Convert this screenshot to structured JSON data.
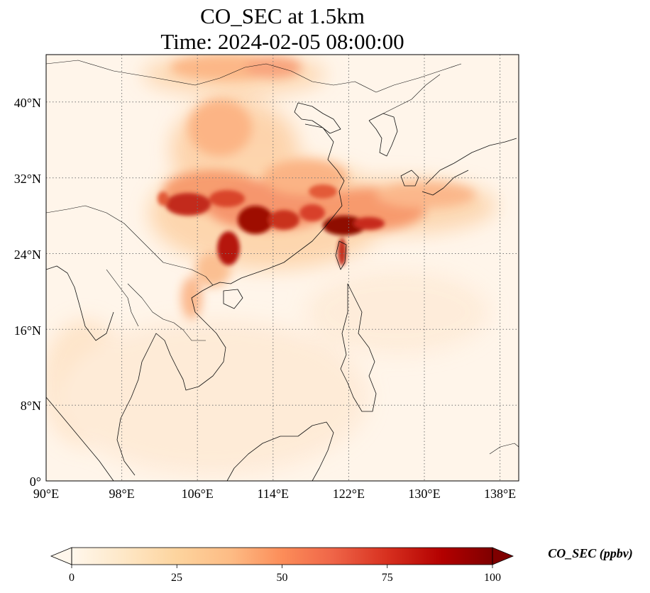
{
  "title": {
    "line1": "CO_SEC at 1.5km",
    "line2": "Time: 2024-02-05 08:00:00"
  },
  "map": {
    "lon_range": [
      90,
      140
    ],
    "lat_range": [
      0,
      45
    ],
    "grid": "dotted",
    "lon_ticks": [
      "90°E",
      "98°E",
      "106°E",
      "114°E",
      "122°E",
      "130°E",
      "138°E"
    ],
    "lat_ticks": [
      "0°",
      "8°N",
      "16°N",
      "24°N",
      "32°N",
      "40°N"
    ]
  },
  "colorbar": {
    "label": "CO_SEC (ppbv)",
    "ticks": [
      "0",
      "25",
      "50",
      "75",
      "100"
    ],
    "range": [
      0,
      100
    ],
    "extend": "both",
    "colormap": "OrRd",
    "colors": [
      "#fff7ec",
      "#fee8c8",
      "#fdd49e",
      "#fdbb84",
      "#fc8d59",
      "#ef6548",
      "#d7301f",
      "#b30000",
      "#7f0000"
    ]
  }
}
